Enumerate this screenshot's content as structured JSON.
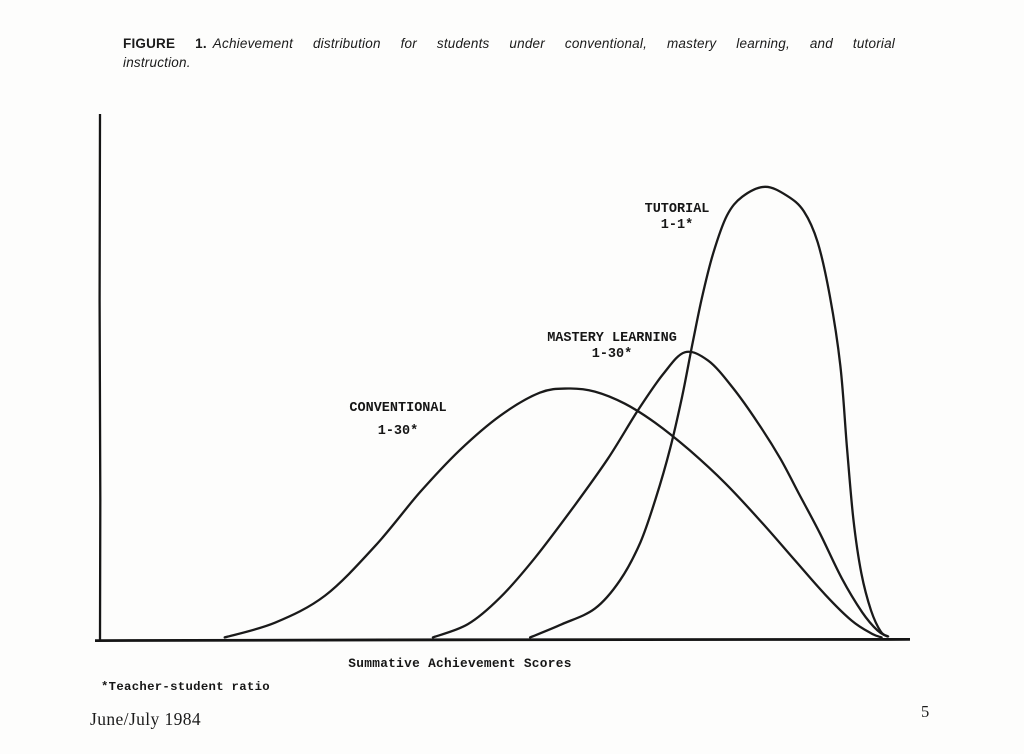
{
  "figure_caption": {
    "label": "FIGURE 1.",
    "text_line1": "Achievement distribution for students under conventional, mastery learning, and tutorial",
    "text_line2": "instruction."
  },
  "chart_data": {
    "type": "line",
    "title": "FIGURE 1. Achievement distribution for students under conventional, mastery learning, and tutorial instruction.",
    "xlabel": "Summative Achievement Scores",
    "ylabel": "",
    "footnote": "*Teacher-student ratio",
    "grid": false,
    "legend_position": "inline-annotations",
    "x_axis": {
      "tick_labels": "none",
      "range_norm": [
        0,
        1
      ]
    },
    "y_axis": {
      "tick_labels": "none",
      "range_norm": [
        0,
        1
      ]
    },
    "series": [
      {
        "name": "CONVENTIONAL",
        "ratio": "1-30*",
        "peak": {
          "x_norm": 0.578,
          "height_norm": 0.479
        },
        "points": [
          [
            0.154,
            0.004
          ],
          [
            0.216,
            0.032
          ],
          [
            0.278,
            0.084
          ],
          [
            0.34,
            0.179
          ],
          [
            0.395,
            0.281
          ],
          [
            0.444,
            0.361
          ],
          [
            0.494,
            0.427
          ],
          [
            0.543,
            0.471
          ],
          [
            0.578,
            0.479
          ],
          [
            0.611,
            0.473
          ],
          [
            0.648,
            0.45
          ],
          [
            0.685,
            0.414
          ],
          [
            0.728,
            0.361
          ],
          [
            0.772,
            0.298
          ],
          [
            0.815,
            0.227
          ],
          [
            0.858,
            0.151
          ],
          [
            0.895,
            0.086
          ],
          [
            0.928,
            0.036
          ],
          [
            0.953,
            0.011
          ],
          [
            0.965,
            0.004
          ]
        ]
      },
      {
        "name": "MASTERY LEARNING",
        "ratio": "1-30*",
        "peak": {
          "x_norm": 0.722,
          "height_norm": 0.548
        },
        "points": [
          [
            0.411,
            0.004
          ],
          [
            0.454,
            0.029
          ],
          [
            0.494,
            0.08
          ],
          [
            0.537,
            0.156
          ],
          [
            0.586,
            0.256
          ],
          [
            0.627,
            0.345
          ],
          [
            0.664,
            0.437
          ],
          [
            0.695,
            0.506
          ],
          [
            0.722,
            0.548
          ],
          [
            0.751,
            0.532
          ],
          [
            0.781,
            0.481
          ],
          [
            0.812,
            0.414
          ],
          [
            0.84,
            0.345
          ],
          [
            0.864,
            0.275
          ],
          [
            0.889,
            0.202
          ],
          [
            0.916,
            0.116
          ],
          [
            0.941,
            0.052
          ],
          [
            0.96,
            0.017
          ],
          [
            0.972,
            0.006
          ]
        ]
      },
      {
        "name": "TUTORIAL",
        "ratio": "1-1*",
        "peak": {
          "x_norm": 0.821,
          "height_norm": 0.864
        },
        "points": [
          [
            0.531,
            0.004
          ],
          [
            0.57,
            0.029
          ],
          [
            0.611,
            0.059
          ],
          [
            0.642,
            0.113
          ],
          [
            0.667,
            0.185
          ],
          [
            0.686,
            0.269
          ],
          [
            0.704,
            0.365
          ],
          [
            0.719,
            0.466
          ],
          [
            0.731,
            0.561
          ],
          [
            0.743,
            0.651
          ],
          [
            0.757,
            0.737
          ],
          [
            0.774,
            0.809
          ],
          [
            0.793,
            0.845
          ],
          [
            0.821,
            0.864
          ],
          [
            0.848,
            0.847
          ],
          [
            0.869,
            0.817
          ],
          [
            0.886,
            0.758
          ],
          [
            0.901,
            0.656
          ],
          [
            0.914,
            0.523
          ],
          [
            0.922,
            0.37
          ],
          [
            0.93,
            0.231
          ],
          [
            0.94,
            0.126
          ],
          [
            0.952,
            0.055
          ],
          [
            0.964,
            0.015
          ],
          [
            0.973,
            0.006
          ]
        ]
      }
    ]
  },
  "footer": {
    "issue": "June/July 1984",
    "page_number": "5"
  },
  "colors": {
    "ink": "#1a1a1a",
    "paper": "#fdfdfc"
  }
}
